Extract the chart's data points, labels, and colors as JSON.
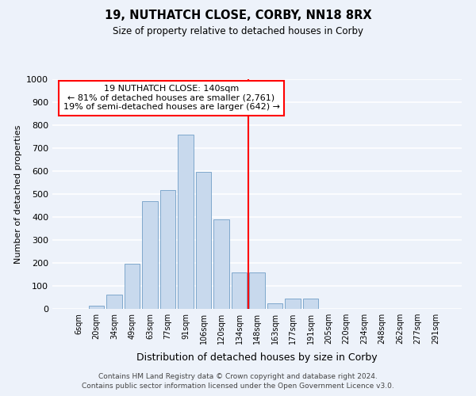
{
  "title": "19, NUTHATCH CLOSE, CORBY, NN18 8RX",
  "subtitle": "Size of property relative to detached houses in Corby",
  "xlabel": "Distribution of detached houses by size in Corby",
  "ylabel": "Number of detached properties",
  "bar_labels": [
    "6sqm",
    "20sqm",
    "34sqm",
    "49sqm",
    "63sqm",
    "77sqm",
    "91sqm",
    "106sqm",
    "120sqm",
    "134sqm",
    "148sqm",
    "163sqm",
    "177sqm",
    "191sqm",
    "205sqm",
    "220sqm",
    "234sqm",
    "248sqm",
    "262sqm",
    "277sqm",
    "291sqm"
  ],
  "bar_values": [
    0,
    13,
    63,
    197,
    470,
    517,
    757,
    597,
    390,
    160,
    160,
    25,
    45,
    45,
    0,
    0,
    0,
    0,
    0,
    0,
    0
  ],
  "bar_color": "#c8d9ed",
  "bar_edge_color": "#7fa8cc",
  "vline_x": 9.5,
  "vline_color": "red",
  "annotation_title": "19 NUTHATCH CLOSE: 140sqm",
  "annotation_line1": "← 81% of detached houses are smaller (2,761)",
  "annotation_line2": "19% of semi-detached houses are larger (642) →",
  "annotation_box_color": "white",
  "annotation_box_edge": "red",
  "ylim": [
    0,
    1000
  ],
  "yticks": [
    0,
    100,
    200,
    300,
    400,
    500,
    600,
    700,
    800,
    900,
    1000
  ],
  "footer1": "Contains HM Land Registry data © Crown copyright and database right 2024.",
  "footer2": "Contains public sector information licensed under the Open Government Licence v3.0.",
  "bg_color": "#edf2fa"
}
